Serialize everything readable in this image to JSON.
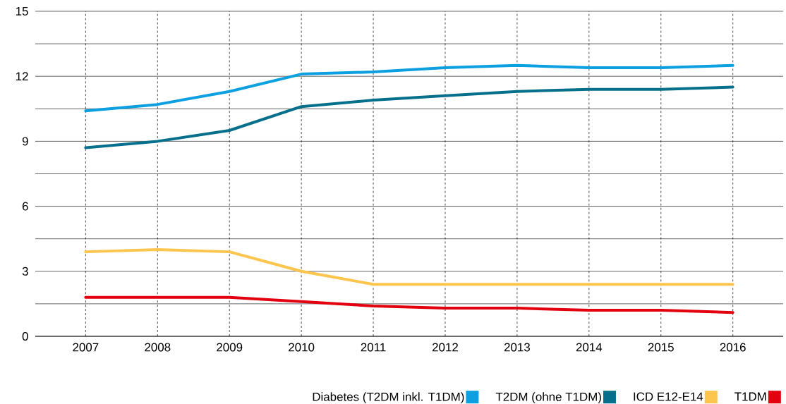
{
  "chart_data": {
    "type": "line",
    "x": [
      2007,
      2008,
      2009,
      2010,
      2011,
      2012,
      2013,
      2014,
      2015,
      2016
    ],
    "series": [
      {
        "name": "Diabetes (T2DM inkl. T1DM)",
        "color": "#0ca0e0",
        "values": [
          10.4,
          10.7,
          11.3,
          12.1,
          12.2,
          12.4,
          12.5,
          12.4,
          12.4,
          12.5
        ]
      },
      {
        "name": "T2DM (ohne T1DM)",
        "color": "#06708c",
        "values": [
          8.7,
          9.0,
          9.5,
          10.6,
          10.9,
          11.1,
          11.3,
          11.4,
          11.4,
          11.5
        ]
      },
      {
        "name": "ICD E12-E14",
        "color": "#fcc54e",
        "values": [
          3.9,
          4.0,
          3.9,
          3.0,
          2.4,
          2.4,
          2.4,
          2.4,
          2.4,
          2.4
        ]
      },
      {
        "name": "T1DM",
        "color": "#e3000f",
        "values": [
          1.8,
          1.8,
          1.8,
          1.6,
          1.4,
          1.3,
          1.3,
          1.2,
          1.2,
          1.1
        ]
      }
    ],
    "xlim": [
      2006.3,
      2016.7
    ],
    "ylim": [
      0,
      15
    ],
    "xticks": [
      2007,
      2008,
      2009,
      2010,
      2011,
      2012,
      2013,
      2014,
      2015,
      2016
    ],
    "yticks": [
      0,
      {
        "value": 1.5,
        "label": null
      },
      3,
      {
        "value": 4.5,
        "label": null
      },
      6,
      {
        "value": 7.5,
        "label": null
      },
      9,
      {
        "value": 10.5,
        "label": null
      },
      12,
      {
        "value": 13.5,
        "label": null
      },
      15
    ],
    "grid": true,
    "legend": "bottom right",
    "marker": "none",
    "line_style": "solid"
  }
}
